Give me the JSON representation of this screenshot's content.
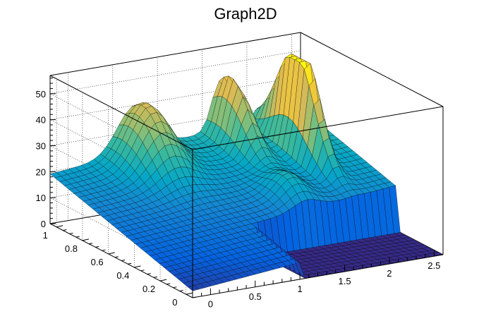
{
  "chart_data": {
    "type": "surface3d",
    "title": "Graph2D",
    "xlabel": "",
    "ylabel": "",
    "zlabel": "",
    "xlim": [
      -0.2,
      2.6
    ],
    "ylim": [
      -0.05,
      1.05
    ],
    "zlim": [
      0,
      57
    ],
    "x_ticks": [
      "0",
      "0.5",
      "1",
      "1.5",
      "2",
      "2.5"
    ],
    "x_tick_values": [
      0,
      0.5,
      1,
      1.5,
      2,
      2.5
    ],
    "y_ticks": [
      "0",
      "0.2",
      "0.4",
      "0.6",
      "0.8",
      "1"
    ],
    "y_tick_values": [
      0,
      0.2,
      0.4,
      0.6,
      0.8,
      1
    ],
    "z_ticks": [
      "0",
      "10",
      "20",
      "30",
      "40",
      "50"
    ],
    "z_tick_values": [
      0,
      10,
      20,
      30,
      40,
      50
    ],
    "grid": true,
    "palette": "kBird",
    "surface": {
      "x_range": [
        -0.2,
        2.6
      ],
      "y_range": [
        -0.05,
        1.05
      ],
      "nx": 40,
      "ny": 30,
      "components": [
        {
          "kind": "plane",
          "z0": 4,
          "slope_x": 3.2,
          "slope_y": 15
        },
        {
          "kind": "peak",
          "x": 0.75,
          "y": 0.95,
          "amp": 22,
          "sx": 0.28,
          "sy": 0.22
        },
        {
          "kind": "peak",
          "x": 1.7,
          "y": 0.95,
          "amp": 24,
          "sx": 0.13,
          "sy": 0.2
        },
        {
          "kind": "peak",
          "x": 2.15,
          "y": 0.75,
          "amp": 45,
          "sx": 0.1,
          "sy": 0.2
        },
        {
          "kind": "peak",
          "x": 1.6,
          "y": 0.45,
          "amp": 8,
          "sx": 0.2,
          "sy": 0.15
        },
        {
          "kind": "cut",
          "x_min": 1.05,
          "y_max": 0.3,
          "z": 0
        }
      ]
    }
  },
  "colors": {
    "frame": "#000000",
    "grid": "#000000",
    "mesh_line": "#000000",
    "palette_stops": [
      "#352a87",
      "#0363e1",
      "#1485d4",
      "#06a7c6",
      "#38b99e",
      "#92bf73",
      "#d9ba56",
      "#fcce2e",
      "#f9fb0e"
    ]
  }
}
